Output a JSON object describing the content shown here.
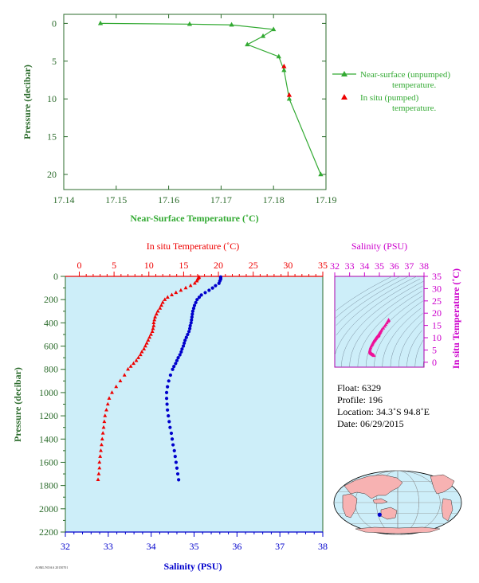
{
  "colors": {
    "near_surface": "#33aa33",
    "in_situ_temp": "#ee0000",
    "salinity": "#0000cc",
    "ts_points": "#ee1199",
    "ts_axis": "#cc00cc",
    "axis_green": "#2b6b2b",
    "panel_bg": "#cdeef9",
    "land": "#f7b2b2",
    "ocean": "#cdeef9"
  },
  "chart_data": [
    {
      "type": "line",
      "name": "near-surface",
      "xlabel": "Near-Surface Temperature (˚C)",
      "ylabel": "Pressure (decibar)",
      "xlim": [
        17.14,
        17.19
      ],
      "ylim": [
        22,
        -1.2
      ],
      "x_ticks": [
        "17.14",
        "17.15",
        "17.16",
        "17.17",
        "17.18",
        "17.19"
      ],
      "y_ticks": [
        "0",
        "5",
        "10",
        "15",
        "20"
      ],
      "legend_position": "right",
      "series": [
        {
          "name": "Near-surface (unpumped) temperature.",
          "marker": "triangle",
          "points": [
            [
              17.147,
              0.0
            ],
            [
              17.164,
              0.1
            ],
            [
              17.172,
              0.2
            ],
            [
              17.18,
              0.8
            ],
            [
              17.178,
              1.7
            ],
            [
              17.175,
              2.8
            ],
            [
              17.181,
              4.4
            ],
            [
              17.182,
              6.2
            ],
            [
              17.183,
              10.0
            ],
            [
              17.189,
              20.0
            ]
          ]
        },
        {
          "name": "In situ (pumped) temperature.",
          "marker": "triangle",
          "points": [
            [
              17.182,
              5.7
            ],
            [
              17.183,
              9.5
            ]
          ]
        }
      ],
      "legend": [
        {
          "lines": [
            "Near-surface (unpumped)",
            "temperature."
          ]
        },
        {
          "lines": [
            "In situ (pumped)",
            "temperature."
          ]
        }
      ]
    },
    {
      "type": "scatter",
      "name": "profile",
      "top_axis_label": "In situ Temperature (˚C)",
      "bottom_axis_label": "Salinity (PSU)",
      "ylabel": "Pressure (decibar)",
      "temp_lim": [
        -2,
        35
      ],
      "sal_lim": [
        32,
        38
      ],
      "ylim": [
        2200,
        0
      ],
      "temp_ticks": [
        "0",
        "5",
        "10",
        "15",
        "20",
        "25",
        "30",
        "35"
      ],
      "sal_ticks": [
        "32",
        "33",
        "34",
        "35",
        "36",
        "37",
        "38"
      ],
      "p_ticks": [
        "0",
        "200",
        "400",
        "600",
        "800",
        "1000",
        "1200",
        "1400",
        "1600",
        "1800",
        "2000",
        "2200"
      ],
      "temperature": [
        [
          17.2,
          5
        ],
        [
          17.2,
          10
        ],
        [
          17.1,
          15
        ],
        [
          17.0,
          25
        ],
        [
          16.9,
          40
        ],
        [
          16.6,
          60
        ],
        [
          16.0,
          80
        ],
        [
          15.3,
          100
        ],
        [
          14.6,
          120
        ],
        [
          13.9,
          140
        ],
        [
          13.3,
          160
        ],
        [
          12.7,
          180
        ],
        [
          12.3,
          200
        ],
        [
          12.0,
          225
        ],
        [
          11.8,
          250
        ],
        [
          11.6,
          275
        ],
        [
          11.3,
          300
        ],
        [
          11.1,
          325
        ],
        [
          10.9,
          350
        ],
        [
          10.8,
          375
        ],
        [
          10.7,
          400
        ],
        [
          10.7,
          425
        ],
        [
          10.6,
          450
        ],
        [
          10.5,
          475
        ],
        [
          10.3,
          500
        ],
        [
          10.1,
          525
        ],
        [
          9.9,
          550
        ],
        [
          9.7,
          575
        ],
        [
          9.5,
          600
        ],
        [
          9.3,
          625
        ],
        [
          9.0,
          650
        ],
        [
          8.8,
          675
        ],
        [
          8.5,
          700
        ],
        [
          8.2,
          725
        ],
        [
          7.8,
          750
        ],
        [
          7.4,
          775
        ],
        [
          7.0,
          800
        ],
        [
          6.5,
          850
        ],
        [
          5.9,
          900
        ],
        [
          5.3,
          950
        ],
        [
          4.7,
          1000
        ],
        [
          4.3,
          1050
        ],
        [
          4.1,
          1100
        ],
        [
          3.9,
          1150
        ],
        [
          3.7,
          1200
        ],
        [
          3.6,
          1250
        ],
        [
          3.5,
          1300
        ],
        [
          3.4,
          1350
        ],
        [
          3.3,
          1400
        ],
        [
          3.2,
          1450
        ],
        [
          3.1,
          1500
        ],
        [
          3.0,
          1550
        ],
        [
          2.9,
          1600
        ],
        [
          2.9,
          1650
        ],
        [
          2.8,
          1700
        ],
        [
          2.7,
          1750
        ]
      ],
      "salinity": [
        [
          35.62,
          5
        ],
        [
          35.62,
          10
        ],
        [
          35.62,
          15
        ],
        [
          35.62,
          25
        ],
        [
          35.6,
          40
        ],
        [
          35.58,
          60
        ],
        [
          35.5,
          80
        ],
        [
          35.43,
          100
        ],
        [
          35.35,
          120
        ],
        [
          35.26,
          140
        ],
        [
          35.17,
          160
        ],
        [
          35.12,
          180
        ],
        [
          35.07,
          200
        ],
        [
          35.04,
          225
        ],
        [
          35.01,
          250
        ],
        [
          34.99,
          275
        ],
        [
          34.97,
          300
        ],
        [
          34.96,
          325
        ],
        [
          34.95,
          350
        ],
        [
          34.94,
          375
        ],
        [
          34.93,
          400
        ],
        [
          34.91,
          425
        ],
        [
          34.9,
          450
        ],
        [
          34.88,
          475
        ],
        [
          34.85,
          500
        ],
        [
          34.82,
          525
        ],
        [
          34.79,
          550
        ],
        [
          34.77,
          575
        ],
        [
          34.75,
          600
        ],
        [
          34.72,
          625
        ],
        [
          34.7,
          650
        ],
        [
          34.67,
          675
        ],
        [
          34.63,
          700
        ],
        [
          34.6,
          725
        ],
        [
          34.57,
          750
        ],
        [
          34.53,
          775
        ],
        [
          34.5,
          800
        ],
        [
          34.45,
          850
        ],
        [
          34.41,
          900
        ],
        [
          34.38,
          950
        ],
        [
          34.36,
          1000
        ],
        [
          34.36,
          1050
        ],
        [
          34.37,
          1100
        ],
        [
          34.38,
          1150
        ],
        [
          34.4,
          1200
        ],
        [
          34.42,
          1250
        ],
        [
          34.44,
          1300
        ],
        [
          34.47,
          1350
        ],
        [
          34.49,
          1400
        ],
        [
          34.51,
          1450
        ],
        [
          34.54,
          1500
        ],
        [
          34.56,
          1550
        ],
        [
          34.58,
          1600
        ],
        [
          34.6,
          1650
        ],
        [
          34.62,
          1700
        ],
        [
          34.64,
          1750
        ]
      ]
    },
    {
      "type": "scatter",
      "name": "t-s diagram",
      "top_axis_label": "Salinity (PSU)",
      "right_axis_label": "In situ Temperature (˚C)",
      "sal_lim": [
        32,
        38
      ],
      "temp_lim": [
        -2,
        35
      ],
      "sal_ticks": [
        "32",
        "33",
        "34",
        "35",
        "36",
        "37",
        "38"
      ],
      "temp_ticks": [
        "0",
        "5",
        "10",
        "15",
        "20",
        "25",
        "30",
        "35"
      ]
    }
  ],
  "float_info": {
    "float": "Float:  6329",
    "profile": "Profile:  196",
    "location": "Location:  34.3˚S  94.8˚E",
    "date": "Date:  06/29/2015"
  },
  "float_position": {
    "lon": 94.8,
    "lat": -34.3
  },
  "footer_note": "AOML/NOAA  20150701"
}
